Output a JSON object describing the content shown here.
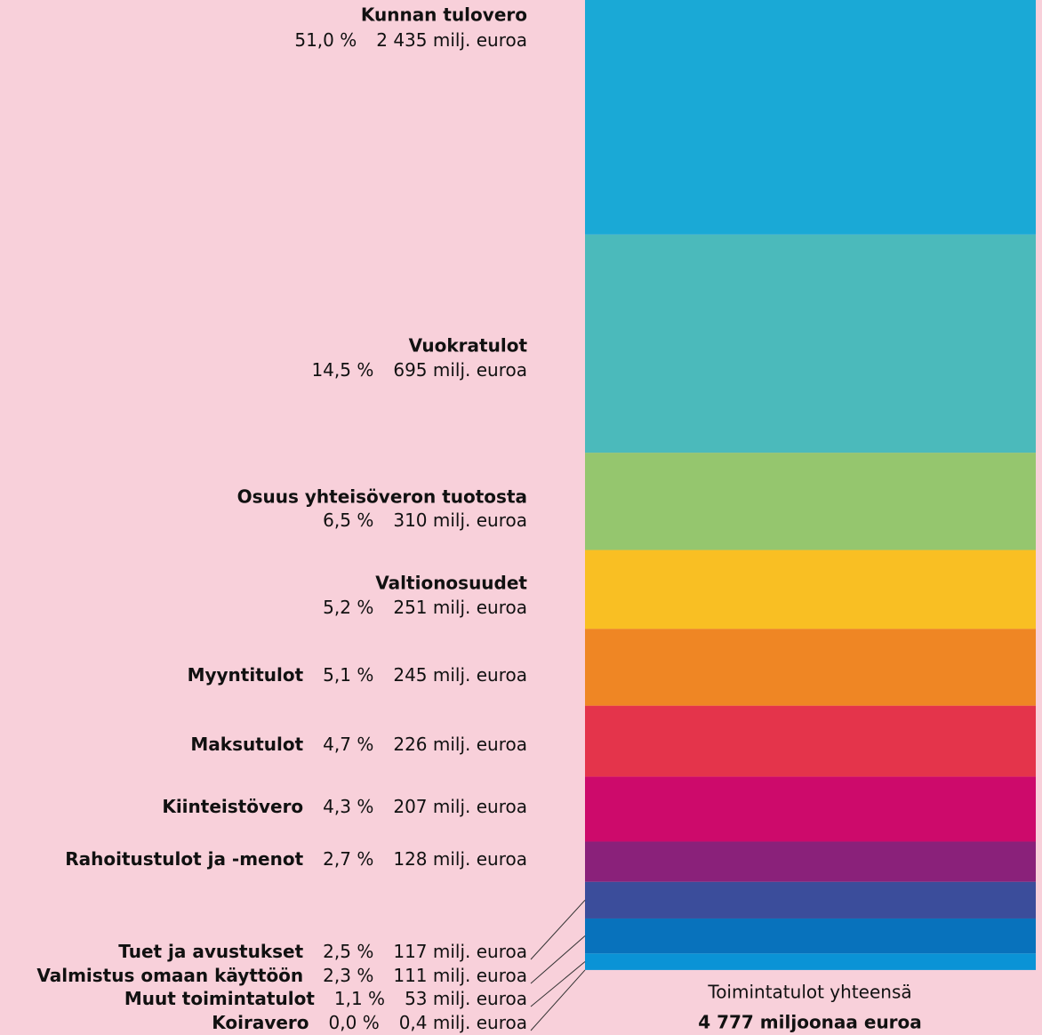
{
  "chart_data": {
    "type": "stacked-bar",
    "categories": [
      "Kunnan tulovero",
      "Vuokratulot",
      "Osuus yhteisöveron tuotosta",
      "Valtionosuudet",
      "Myyntitulot",
      "Maksutulot",
      "Kiinteistövero",
      "Rahoitustulot ja -menot",
      "Tuet ja avustukset",
      "Valmistus omaan käyttöön",
      "Muut toimintatulot",
      "Koiravero"
    ],
    "values": [
      2435,
      695,
      310,
      251,
      245,
      226,
      207,
      128,
      117,
      111,
      53,
      0.4
    ],
    "value_labels": [
      "2 435 milj. euroa",
      "695 milj. euroa",
      "310 milj. euroa",
      "251 milj. euroa",
      "245 milj. euroa",
      "226 milj. euroa",
      "207 milj. euroa",
      "128 milj. euroa",
      "117 milj. euroa",
      "111 milj. euroa",
      "53 milj. euroa",
      "0,4 milj. euroa"
    ],
    "shares": [
      51.0,
      14.5,
      6.5,
      5.2,
      5.1,
      4.7,
      4.3,
      2.7,
      2.5,
      2.3,
      1.1,
      0.0
    ],
    "share_labels": [
      "51,0 %",
      "14,5 %",
      "6,5 %",
      "5,2 %",
      "5,1 %",
      "4,7 %",
      "4,3 %",
      "2,7 %",
      "2,5 %",
      "2,3 %",
      "1,1 %",
      "0,0 %"
    ],
    "colors": [
      "#1aa9d6",
      "#4bbabb",
      "#95c66e",
      "#f9bf23",
      "#ef8624",
      "#e4344b",
      "#cd0a6b",
      "#8a217a",
      "#3b4d9b",
      "#0872bc",
      "#0a93d6",
      "#0a93d6"
    ],
    "total_title": "Toimintatulot yhteensä",
    "total_label": "4 777 miljoonaa euroa"
  }
}
